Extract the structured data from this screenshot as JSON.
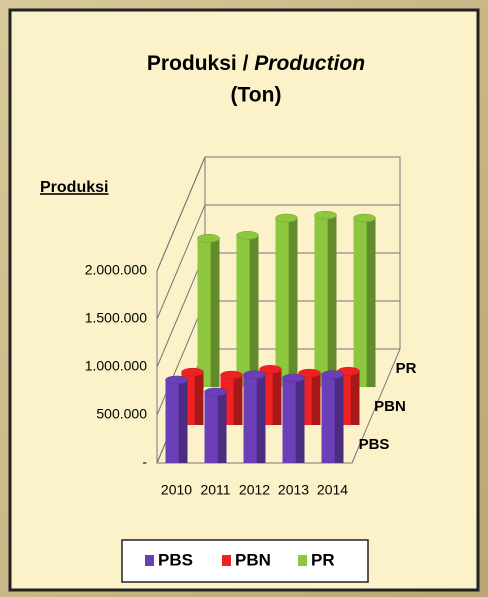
{
  "chart_data": {
    "type": "bar",
    "title": [
      "Produksi /",
      "Production"
    ],
    "subtitle": "(Ton)",
    "y_axis_label": "Produksi",
    "categories": [
      "2010",
      "2011",
      "2012",
      "2013",
      "2014"
    ],
    "series": [
      {
        "name": "PBS",
        "color": "#6b3fb8",
        "values": [
          865000,
          740000,
          920000,
          885000,
          920000
        ]
      },
      {
        "name": "PBN",
        "color": "#ee2222",
        "values": [
          550000,
          520000,
          580000,
          540000,
          560000
        ]
      },
      {
        "name": "PR",
        "color": "#8dc63f",
        "values": [
          1550000,
          1580000,
          1760000,
          1790000,
          1760000
        ]
      }
    ],
    "ylim": [
      0,
      2000000
    ],
    "yticks": [
      {
        "value": 0,
        "label": "-"
      },
      {
        "value": 500000,
        "label": "500.000"
      },
      {
        "value": 1000000,
        "label": "1.000.000"
      },
      {
        "value": 1500000,
        "label": "1.500.000"
      },
      {
        "value": 2000000,
        "label": "2.000.000"
      }
    ],
    "grid": true,
    "legend": "bottom"
  }
}
